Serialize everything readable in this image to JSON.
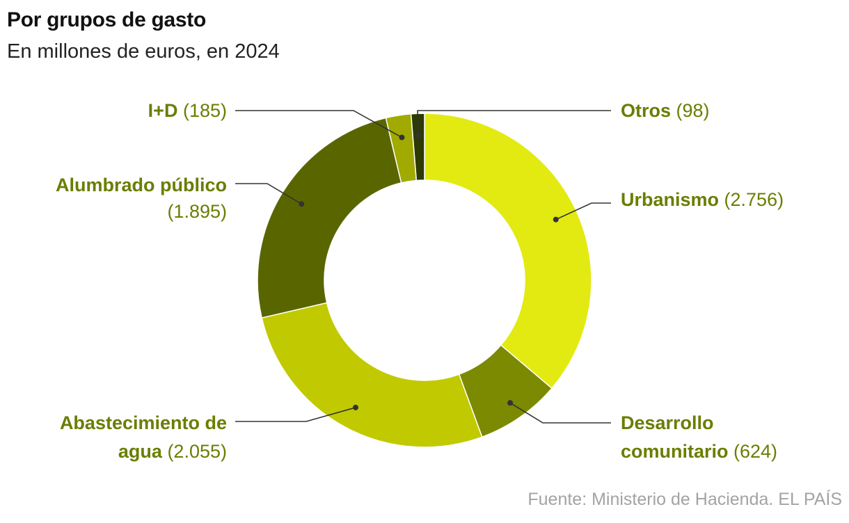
{
  "header": {
    "title": "Por grupos de gasto",
    "subtitle": "En millones de euros, en 2024"
  },
  "source": "Fuente: Ministerio de Hacienda. EL PAÍS",
  "colors": {
    "label_name": "#6b7d00",
    "label_value": "#6b7d00",
    "leader": "#333333"
  },
  "chart_data": {
    "type": "pie",
    "donut": true,
    "title": "Por grupos de gasto",
    "subtitle": "En millones de euros, en 2024",
    "unit": "millones de euros",
    "slices": [
      {
        "name": "Urbanismo",
        "value": 2756,
        "value_label": "2.756",
        "color": "#e2ea12"
      },
      {
        "name": "Desarrollo comunitario",
        "value": 624,
        "value_label": "624",
        "color": "#7b8a00"
      },
      {
        "name": "Abastecimiento de agua",
        "value": 2055,
        "value_label": "2.055",
        "color": "#c1c900"
      },
      {
        "name": "Alumbrado público",
        "value": 1895,
        "value_label": "1.895",
        "color": "#596600"
      },
      {
        "name": "I+D",
        "value": 185,
        "value_label": "185",
        "color": "#a0aa00"
      },
      {
        "name": "Otros",
        "value": 98,
        "value_label": "98",
        "color": "#2d3a00"
      }
    ]
  }
}
